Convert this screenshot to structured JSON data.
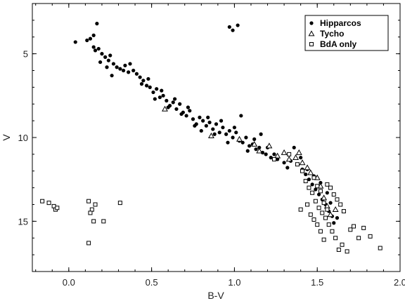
{
  "chart_data": {
    "type": "scatter",
    "xlabel": "B-V",
    "ylabel": "V",
    "xlim": [
      -0.22,
      2.0
    ],
    "ylim": [
      18.0,
      2.0
    ],
    "y_inverted": true,
    "x_ticks": [
      0.0,
      0.5,
      1.0,
      1.5,
      2.0
    ],
    "x_tick_labels": [
      "0.0",
      "0.5",
      "1.0",
      "1.5",
      "2.0"
    ],
    "y_ticks": [
      5,
      10,
      15
    ],
    "y_tick_labels": [
      "5",
      "10",
      "15"
    ],
    "grid": false,
    "legend_position": "top-right",
    "series": [
      {
        "name": "Hipparcos",
        "marker": "filled-circle",
        "color": "#000000",
        "points": [
          [
            0.04,
            4.3
          ],
          [
            0.11,
            4.2
          ],
          [
            0.13,
            4.1
          ],
          [
            0.15,
            3.9
          ],
          [
            0.17,
            3.2
          ],
          [
            0.15,
            4.6
          ],
          [
            0.16,
            4.8
          ],
          [
            0.18,
            4.7
          ],
          [
            0.2,
            5.0
          ],
          [
            0.22,
            5.2
          ],
          [
            0.24,
            5.4
          ],
          [
            0.25,
            5.1
          ],
          [
            0.27,
            5.6
          ],
          [
            0.29,
            5.8
          ],
          [
            0.31,
            5.9
          ],
          [
            0.34,
            5.7
          ],
          [
            0.36,
            6.1
          ],
          [
            0.39,
            6.0
          ],
          [
            0.41,
            6.2
          ],
          [
            0.43,
            6.4
          ],
          [
            0.45,
            6.6
          ],
          [
            0.47,
            6.9
          ],
          [
            0.49,
            7.0
          ],
          [
            0.51,
            7.3
          ],
          [
            0.53,
            7.1
          ],
          [
            0.55,
            7.6
          ],
          [
            0.57,
            7.5
          ],
          [
            0.59,
            7.8
          ],
          [
            0.61,
            8.1
          ],
          [
            0.63,
            7.9
          ],
          [
            0.65,
            8.3
          ],
          [
            0.67,
            8.0
          ],
          [
            0.69,
            8.5
          ],
          [
            0.71,
            8.7
          ],
          [
            0.73,
            8.4
          ],
          [
            0.75,
            8.9
          ],
          [
            0.77,
            9.2
          ],
          [
            0.79,
            8.8
          ],
          [
            0.81,
            9.0
          ],
          [
            0.83,
            9.3
          ],
          [
            0.85,
            9.1
          ],
          [
            0.87,
            9.5
          ],
          [
            0.89,
            9.2
          ],
          [
            0.91,
            9.7
          ],
          [
            0.93,
            9.4
          ],
          [
            0.95,
            9.8
          ],
          [
            0.97,
            9.6
          ],
          [
            0.99,
            10.0
          ],
          [
            1.01,
            9.7
          ],
          [
            1.03,
            10.2
          ],
          [
            1.05,
            10.3
          ],
          [
            1.07,
            10.0
          ],
          [
            1.09,
            10.5
          ],
          [
            1.11,
            10.4
          ],
          [
            1.13,
            10.7
          ],
          [
            1.15,
            10.6
          ],
          [
            1.17,
            10.9
          ],
          [
            1.19,
            11.0
          ],
          [
            1.22,
            11.2
          ],
          [
            1.26,
            11.3
          ],
          [
            1.3,
            11.5
          ],
          [
            1.34,
            11.4
          ],
          [
            1.38,
            11.6
          ],
          [
            1.41,
            11.9
          ],
          [
            1.43,
            12.2
          ],
          [
            1.45,
            12.5
          ],
          [
            1.47,
            12.8
          ],
          [
            1.49,
            13.1
          ],
          [
            1.51,
            13.4
          ],
          [
            1.53,
            13.7
          ],
          [
            1.55,
            14.0
          ],
          [
            1.57,
            14.4
          ],
          [
            1.59,
            14.7
          ],
          [
            1.6,
            15.1
          ],
          [
            0.97,
            3.4
          ],
          [
            0.99,
            3.6
          ],
          [
            1.02,
            3.3
          ],
          [
            0.19,
            5.5
          ],
          [
            0.23,
            5.8
          ],
          [
            0.26,
            6.3
          ],
          [
            0.33,
            6.0
          ],
          [
            0.37,
            5.6
          ],
          [
            0.44,
            6.8
          ],
          [
            0.48,
            6.5
          ],
          [
            0.52,
            7.7
          ],
          [
            0.56,
            7.2
          ],
          [
            0.6,
            8.2
          ],
          [
            0.64,
            7.7
          ],
          [
            0.68,
            8.6
          ],
          [
            0.72,
            8.2
          ],
          [
            0.76,
            9.3
          ],
          [
            0.8,
            9.6
          ],
          [
            0.84,
            8.8
          ],
          [
            0.88,
            9.8
          ],
          [
            0.92,
            9.0
          ],
          [
            0.96,
            10.3
          ],
          [
            1.0,
            9.4
          ],
          [
            1.04,
            8.7
          ],
          [
            1.08,
            10.8
          ],
          [
            1.12,
            10.1
          ],
          [
            1.16,
            9.8
          ],
          [
            1.2,
            10.6
          ],
          [
            1.24,
            11.0
          ],
          [
            1.32,
            11.8
          ],
          [
            1.36,
            10.6
          ],
          [
            1.4,
            11.2
          ],
          [
            1.44,
            11.9
          ],
          [
            1.48,
            12.3
          ],
          [
            1.52,
            12.7
          ],
          [
            1.56,
            13.3
          ],
          [
            1.58,
            13.9
          ],
          [
            1.62,
            14.8
          ]
        ]
      },
      {
        "name": "Tycho",
        "marker": "open-triangle",
        "color": "#000000",
        "points": [
          [
            0.58,
            8.3
          ],
          [
            0.86,
            9.9
          ],
          [
            1.03,
            10.1
          ],
          [
            1.12,
            10.4
          ],
          [
            1.15,
            10.8
          ],
          [
            1.21,
            10.5
          ],
          [
            1.26,
            11.1
          ],
          [
            1.3,
            10.9
          ],
          [
            1.33,
            11.3
          ],
          [
            1.37,
            11.2
          ],
          [
            1.39,
            10.9
          ],
          [
            1.41,
            11.5
          ],
          [
            1.44,
            11.8
          ],
          [
            1.46,
            12.1
          ],
          [
            1.5,
            12.4
          ],
          [
            1.52,
            12.9
          ],
          [
            1.54,
            13.6
          ],
          [
            1.56,
            14.1
          ],
          [
            1.58,
            14.6
          ],
          [
            1.61,
            14.3
          ]
        ]
      },
      {
        "name": "BdA only",
        "marker": "open-square",
        "color": "#000000",
        "points": [
          [
            -0.16,
            13.8
          ],
          [
            -0.12,
            13.9
          ],
          [
            -0.09,
            14.1
          ],
          [
            -0.08,
            14.3
          ],
          [
            -0.07,
            14.2
          ],
          [
            0.12,
            13.8
          ],
          [
            0.14,
            14.3
          ],
          [
            0.16,
            14.0
          ],
          [
            0.13,
            14.5
          ],
          [
            0.15,
            15.0
          ],
          [
            0.21,
            15.0
          ],
          [
            0.31,
            13.9
          ],
          [
            0.12,
            16.3
          ],
          [
            1.24,
            11.3
          ],
          [
            1.33,
            11.0
          ],
          [
            1.38,
            11.6
          ],
          [
            1.41,
            12.0
          ],
          [
            1.43,
            12.6
          ],
          [
            1.45,
            13.0
          ],
          [
            1.47,
            13.3
          ],
          [
            1.49,
            13.8
          ],
          [
            1.51,
            14.2
          ],
          [
            1.53,
            14.5
          ],
          [
            1.55,
            14.8
          ],
          [
            1.57,
            15.2
          ],
          [
            1.59,
            15.6
          ],
          [
            1.61,
            16.0
          ],
          [
            1.63,
            16.7
          ],
          [
            1.65,
            16.4
          ],
          [
            1.68,
            16.8
          ],
          [
            1.7,
            15.5
          ],
          [
            1.72,
            15.3
          ],
          [
            1.75,
            16.0
          ],
          [
            1.78,
            15.4
          ],
          [
            1.82,
            15.9
          ],
          [
            1.88,
            16.6
          ],
          [
            1.4,
            14.3
          ],
          [
            1.44,
            14.0
          ],
          [
            1.46,
            14.6
          ],
          [
            1.48,
            14.9
          ],
          [
            1.5,
            15.2
          ],
          [
            1.52,
            15.6
          ],
          [
            1.54,
            16.1
          ],
          [
            1.56,
            12.8
          ],
          [
            1.58,
            13.0
          ],
          [
            1.6,
            13.4
          ],
          [
            1.62,
            13.7
          ],
          [
            1.64,
            14.0
          ],
          [
            1.66,
            14.4
          ],
          [
            1.48,
            12.4
          ],
          [
            1.5,
            12.9
          ],
          [
            1.52,
            13.2
          ],
          [
            1.54,
            13.9
          ],
          [
            1.56,
            14.3
          ]
        ]
      }
    ]
  }
}
